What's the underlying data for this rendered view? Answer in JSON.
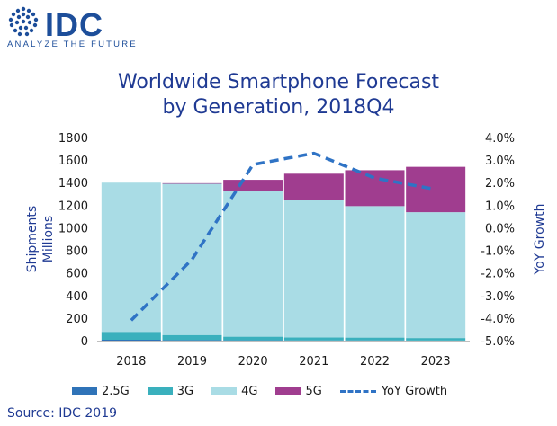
{
  "brand": {
    "name": "IDC",
    "tagline": "ANALYZE THE FUTURE",
    "color": "#1d4e9a"
  },
  "chart_data": {
    "type": "bar",
    "stacked": true,
    "title": "Worldwide Smartphone Forecast",
    "subtitle": "by Generation, 2018Q4",
    "categories": [
      "2018",
      "2019",
      "2020",
      "2021",
      "2022",
      "2023"
    ],
    "series": [
      {
        "name": "2.5G",
        "color": "#2f73b8",
        "values": [
          8,
          5,
          3,
          2,
          2,
          1
        ]
      },
      {
        "name": "3G",
        "color": "#3ab0bd",
        "values": [
          70,
          45,
          32,
          27,
          25,
          22
        ]
      },
      {
        "name": "4G",
        "color": "#a9dce5",
        "values": [
          1322,
          1340,
          1290,
          1220,
          1165,
          1115
        ]
      },
      {
        "name": "5G",
        "color": "#a03d8f",
        "values": [
          0,
          5,
          100,
          230,
          318,
          402
        ]
      }
    ],
    "line_series": {
      "name": "YoY Growth",
      "color": "#2f73c5",
      "style": "dashed",
      "values": [
        -4.1,
        -1.4,
        2.8,
        3.3,
        2.2,
        1.7
      ]
    },
    "ylabel": "Shipments\nMillions",
    "ylim": [
      0,
      1800
    ],
    "yticks": [
      "0",
      "200",
      "400",
      "600",
      "800",
      "1000",
      "1200",
      "1400",
      "1600",
      "1800"
    ],
    "y2label": "YoY Growth",
    "y2lim": [
      -5.0,
      4.0
    ],
    "y2ticks": [
      "-5.0%",
      "-4.0%",
      "-3.0%",
      "-2.0%",
      "-1.0%",
      "0.0%",
      "1.0%",
      "2.0%",
      "3.0%",
      "4.0%"
    ],
    "grid": false,
    "legend": "bottom"
  },
  "source": "Source: IDC 2019"
}
